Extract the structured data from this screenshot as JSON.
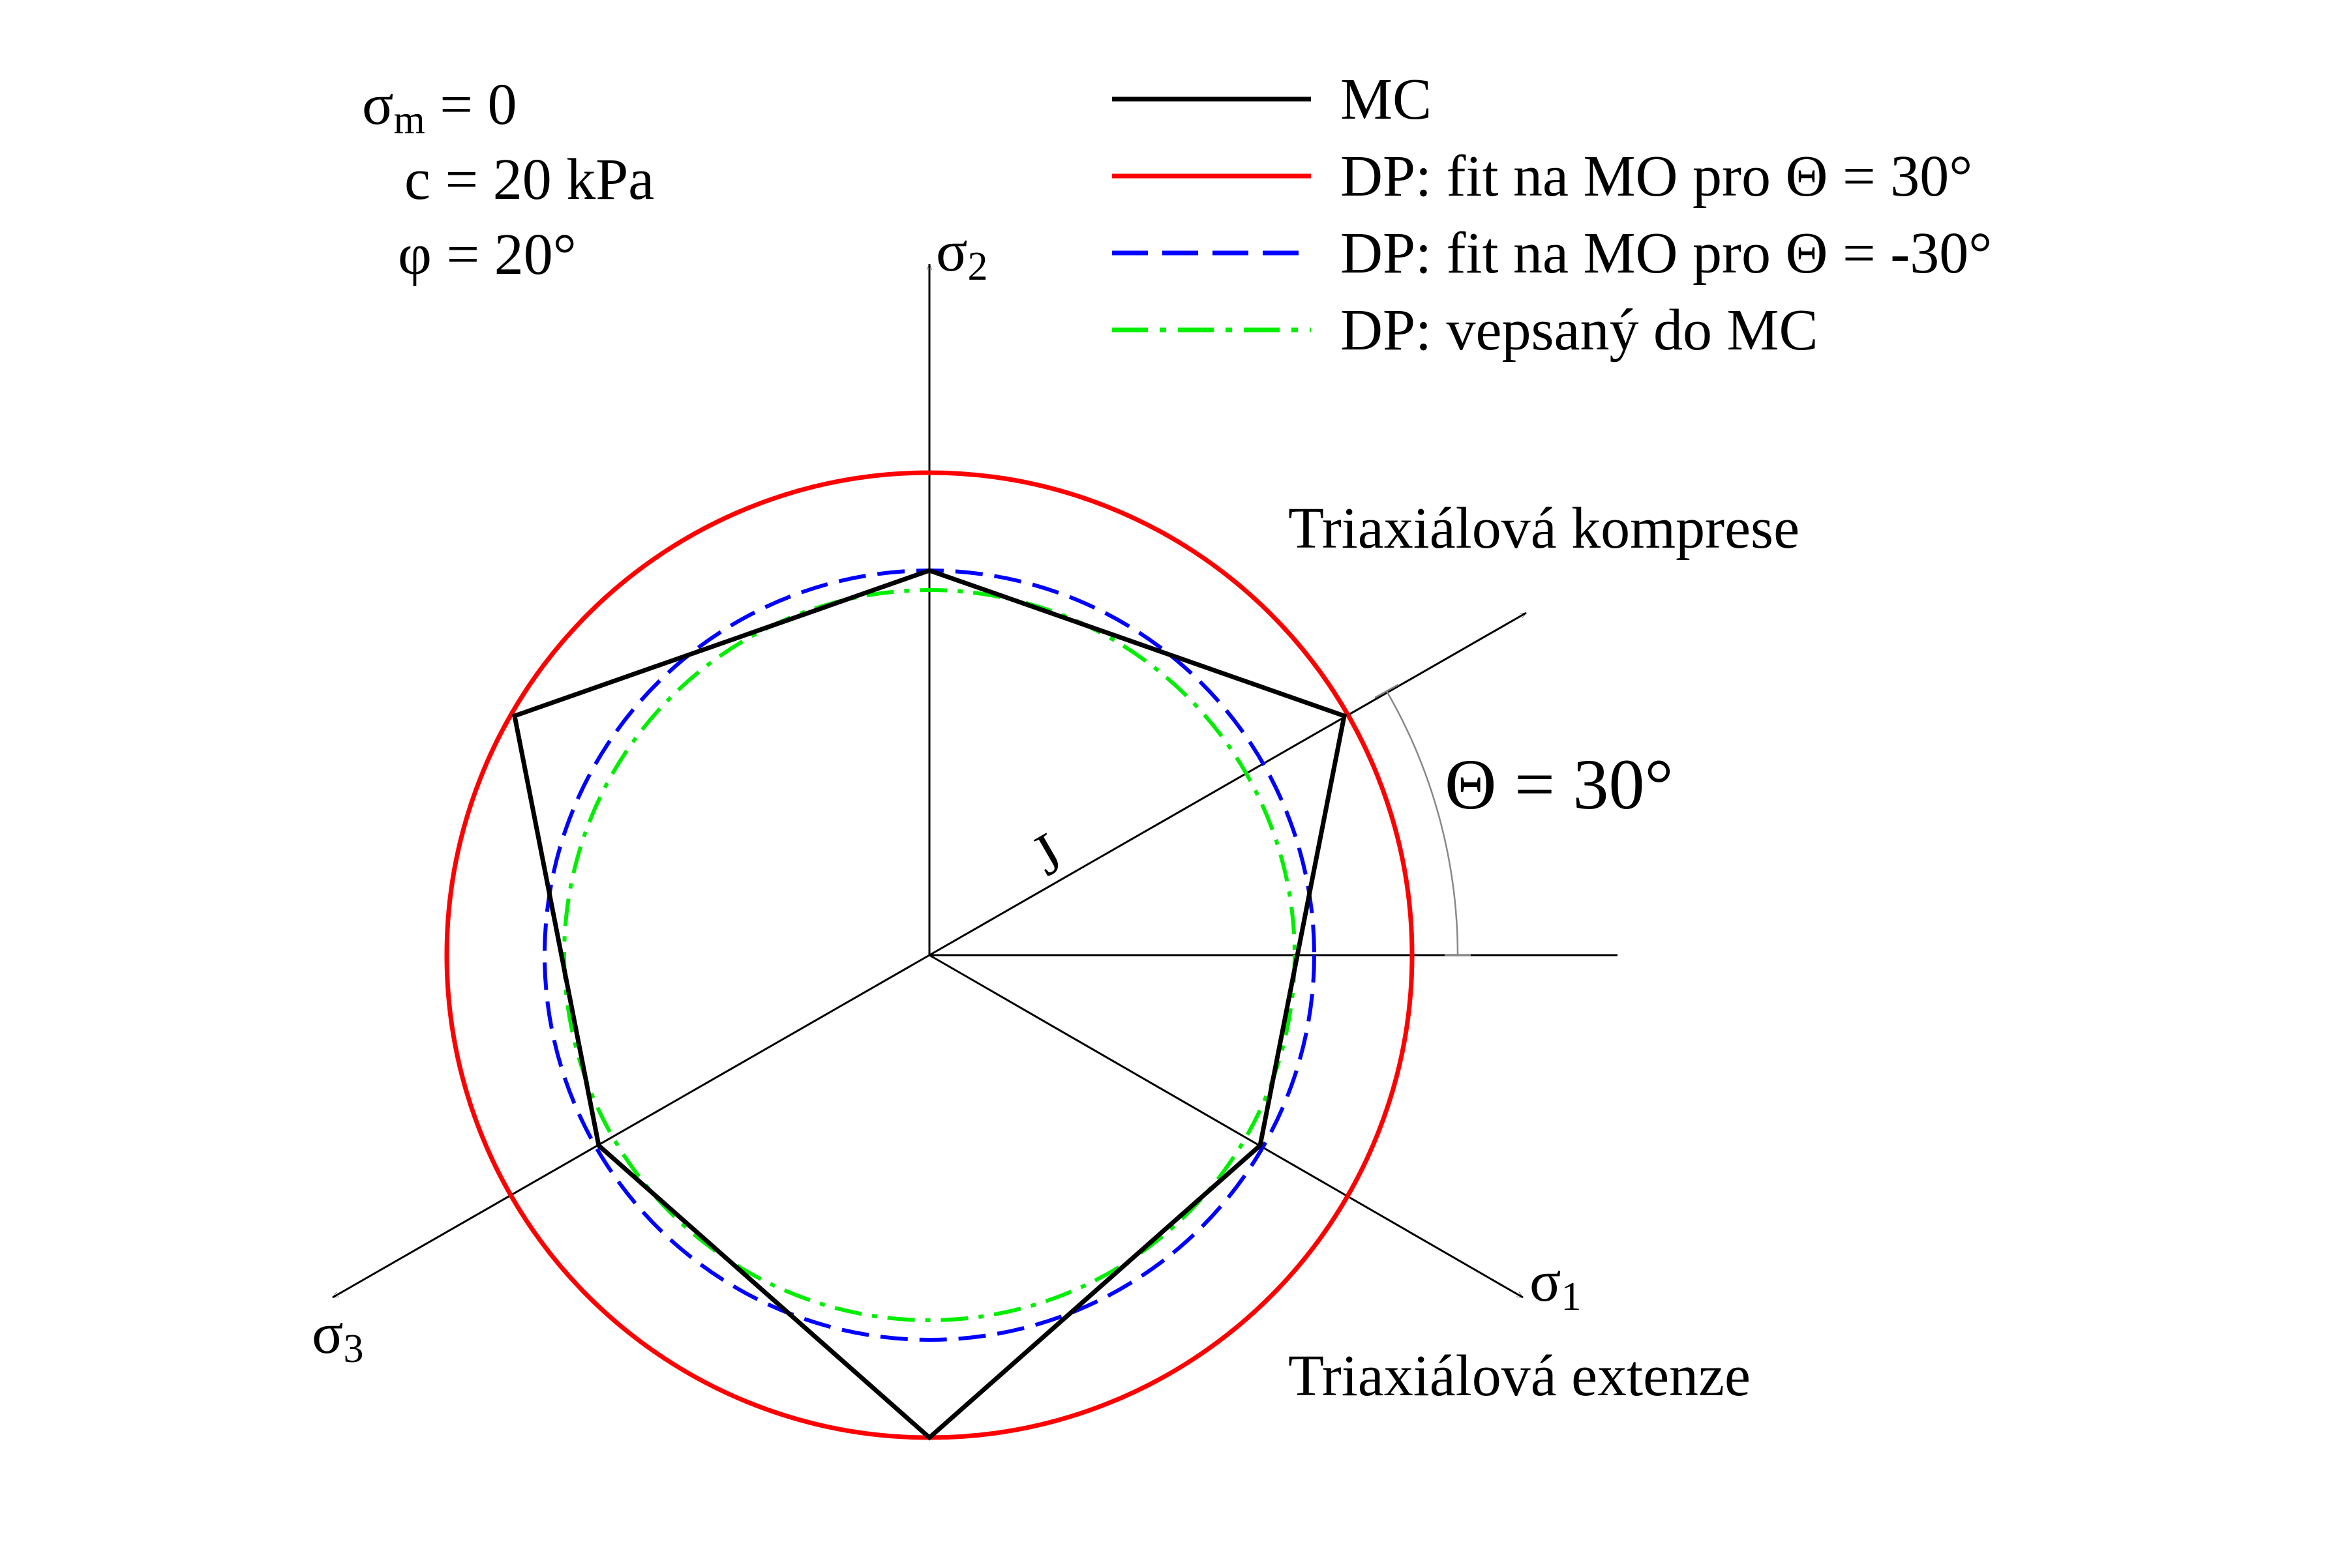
{
  "params": {
    "sigma_symbol": "σ",
    "sigma_sub": "m",
    "sigma_rest": " = 0",
    "c_line": "c = 20 kPa",
    "phi_line": "φ = 20°"
  },
  "legend": [
    {
      "label": "MC",
      "color": "#000000",
      "style": "solid"
    },
    {
      "label": "DP: fit na MO pro Θ = 30°",
      "color": "#ff0000",
      "style": "solid"
    },
    {
      "label": "DP: fit na MO pro Θ = -30°",
      "color": "#0000ff",
      "style": "dashed"
    },
    {
      "label": "DP: vepsaný do MC",
      "color": "#00ee00",
      "style": "dashdot"
    }
  ],
  "axes": {
    "s1_sym": "σ",
    "s1_sub": "1",
    "s2_sym": "σ",
    "s2_sub": "2",
    "s3_sym": "σ",
    "s3_sub": "3"
  },
  "labels": {
    "compression": "Triaxiálová komprese",
    "extension": "Triaxiálová extenze",
    "theta": "Θ = 30°",
    "j": "J"
  },
  "colors": {
    "mc": "#000000",
    "dp_outer": "#ff0000",
    "dp_minus30": "#0000ff",
    "dp_inscribed": "#00ee00",
    "axis": "#000000",
    "angle_arc": "#888888"
  }
}
